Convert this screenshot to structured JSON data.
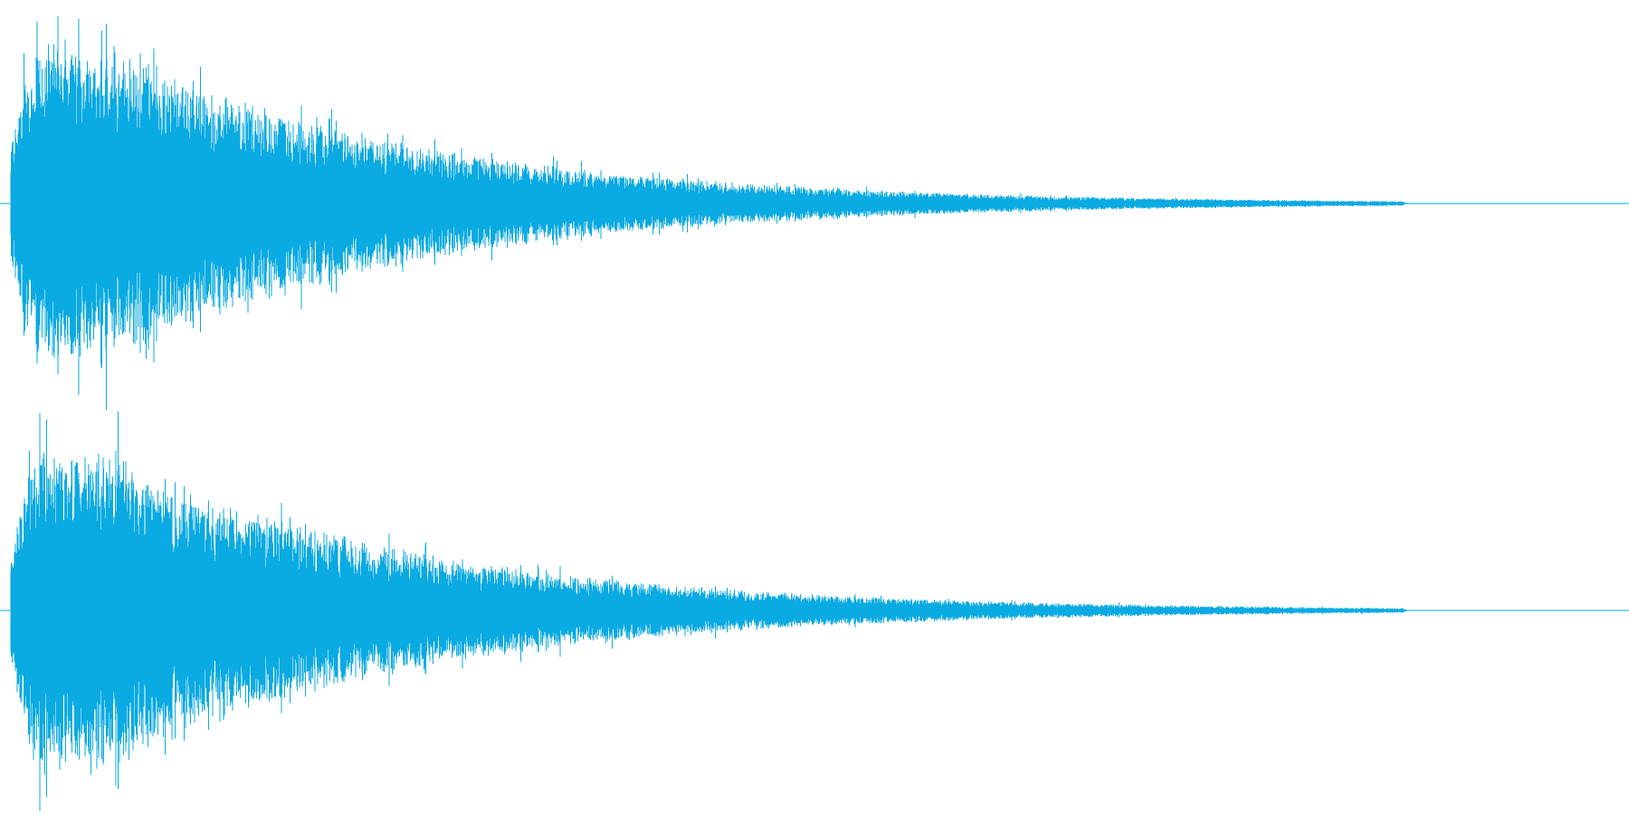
{
  "waveform": {
    "color": "#0aaae2",
    "background": "#ffffff",
    "channels": [
      {
        "name": ""
      },
      {
        "name": ""
      }
    ],
    "envelope": {
      "attack_fraction": 0.013,
      "peak_fraction": 0.06,
      "decay_rate": 4.2,
      "fade_out_fraction": 0.86,
      "peak_amplitude": 0.98
    }
  }
}
